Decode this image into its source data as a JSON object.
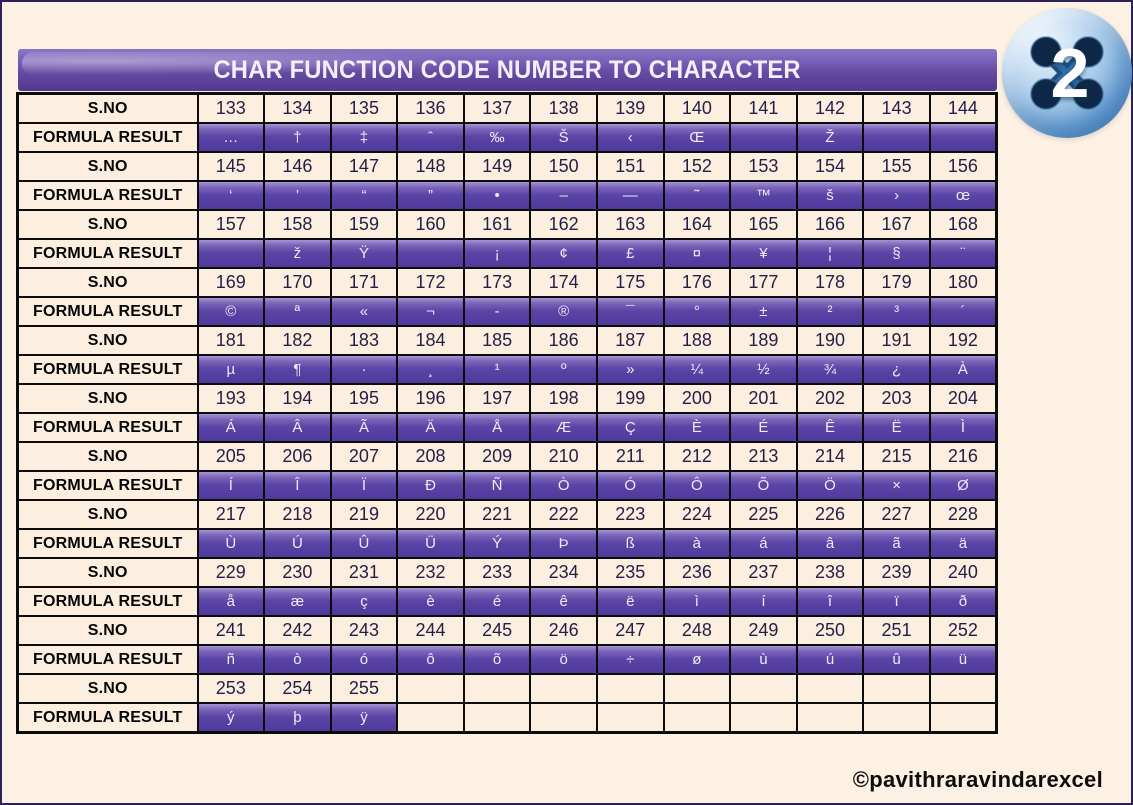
{
  "page": {
    "title": "CHAR FUNCTION CODE NUMBER TO CHARACTER",
    "footer": "©pavithraravindarexcel",
    "badge_number": "2",
    "colors": {
      "background": "#fdf1e3",
      "band_purple": "#63489f",
      "cell_cream": "#fcefdf",
      "cell_purple": "#5a44a6",
      "grid_black": "#0b0b0b",
      "badge_blue": "#6ea3d8"
    }
  },
  "table": {
    "row_labels": {
      "sno": "S.NO",
      "formula": "FORMULA RESULT"
    },
    "rows": [
      {
        "numbers": [
          "133",
          "134",
          "135",
          "136",
          "137",
          "138",
          "139",
          "140",
          "141",
          "142",
          "143",
          "144"
        ],
        "chars": [
          "…",
          "†",
          "‡",
          "ˆ",
          "‰",
          "Š",
          "‹",
          "Œ",
          "",
          "Ž",
          "",
          ""
        ]
      },
      {
        "numbers": [
          "145",
          "146",
          "147",
          "148",
          "149",
          "150",
          "151",
          "152",
          "153",
          "154",
          "155",
          "156"
        ],
        "chars": [
          "‘",
          "’",
          "“",
          "”",
          "•",
          "–",
          "—",
          "˜",
          "™",
          "š",
          "›",
          "œ"
        ]
      },
      {
        "numbers": [
          "157",
          "158",
          "159",
          "160",
          "161",
          "162",
          "163",
          "164",
          "165",
          "166",
          "167",
          "168"
        ],
        "chars": [
          "",
          "ž",
          "Ÿ",
          "",
          "¡",
          "¢",
          "£",
          "¤",
          "¥",
          "¦",
          "§",
          "¨"
        ]
      },
      {
        "numbers": [
          "169",
          "170",
          "171",
          "172",
          "173",
          "174",
          "175",
          "176",
          "177",
          "178",
          "179",
          "180"
        ],
        "chars": [
          "©",
          "ª",
          "«",
          "¬",
          "-",
          "®",
          "¯",
          "°",
          "±",
          "²",
          "³",
          "´"
        ]
      },
      {
        "numbers": [
          "181",
          "182",
          "183",
          "184",
          "185",
          "186",
          "187",
          "188",
          "189",
          "190",
          "191",
          "192"
        ],
        "chars": [
          "µ",
          "¶",
          "·",
          "¸",
          "¹",
          "º",
          "»",
          "¼",
          "½",
          "¾",
          "¿",
          "À"
        ]
      },
      {
        "numbers": [
          "193",
          "194",
          "195",
          "196",
          "197",
          "198",
          "199",
          "200",
          "201",
          "202",
          "203",
          "204"
        ],
        "chars": [
          "Á",
          "Â",
          "Ã",
          "Ä",
          "Å",
          "Æ",
          "Ç",
          "È",
          "É",
          "Ê",
          "Ë",
          "Ì"
        ]
      },
      {
        "numbers": [
          "205",
          "206",
          "207",
          "208",
          "209",
          "210",
          "211",
          "212",
          "213",
          "214",
          "215",
          "216"
        ],
        "chars": [
          "Í",
          "Î",
          "Ï",
          "Ð",
          "Ñ",
          "Ò",
          "Ó",
          "Ô",
          "Õ",
          "Ö",
          "×",
          "Ø"
        ]
      },
      {
        "numbers": [
          "217",
          "218",
          "219",
          "220",
          "221",
          "222",
          "223",
          "224",
          "225",
          "226",
          "227",
          "228"
        ],
        "chars": [
          "Ù",
          "Ú",
          "Û",
          "Ü",
          "Ý",
          "Þ",
          "ß",
          "à",
          "á",
          "â",
          "ã",
          "ä"
        ]
      },
      {
        "numbers": [
          "229",
          "230",
          "231",
          "232",
          "233",
          "234",
          "235",
          "236",
          "237",
          "238",
          "239",
          "240"
        ],
        "chars": [
          "å",
          "æ",
          "ç",
          "è",
          "é",
          "ê",
          "ë",
          "ì",
          "í",
          "î",
          "ï",
          "ð"
        ]
      },
      {
        "numbers": [
          "241",
          "242",
          "243",
          "244",
          "245",
          "246",
          "247",
          "248",
          "249",
          "250",
          "251",
          "252"
        ],
        "chars": [
          "ñ",
          "ò",
          "ó",
          "ô",
          "õ",
          "ö",
          "÷",
          "ø",
          "ù",
          "ú",
          "û",
          "ü"
        ]
      },
      {
        "numbers": [
          "253",
          "254",
          "255",
          "",
          "",
          "",
          "",
          "",
          "",
          "",
          "",
          ""
        ],
        "chars": [
          "ý",
          "þ",
          "ÿ",
          "",
          "",
          "",
          "",
          "",
          "",
          "",
          "",
          ""
        ]
      }
    ]
  }
}
